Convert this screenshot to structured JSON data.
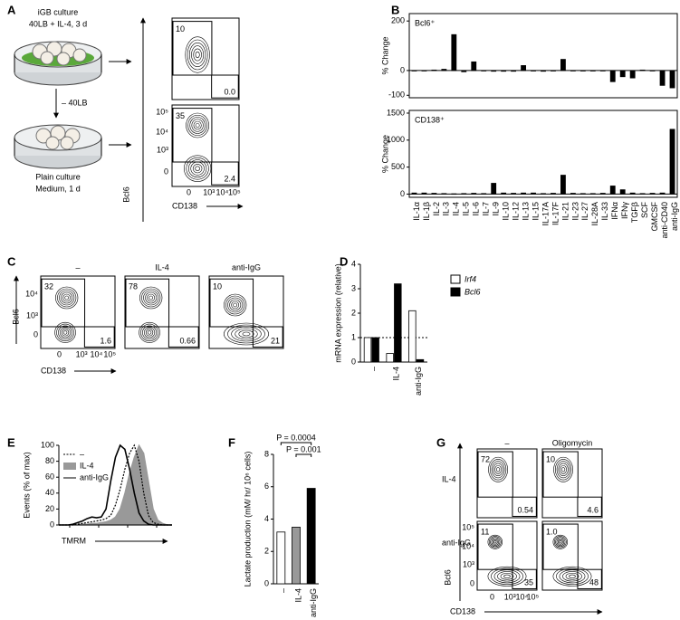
{
  "panel_labels": [
    "A",
    "B",
    "C",
    "D",
    "E",
    "F",
    "G"
  ],
  "panel_a": {
    "culture1": [
      "iGB culture",
      "40LB + IL-4, 3 d"
    ],
    "step": "– 40LB",
    "culture2": [
      "Plain culture",
      "Medium, 1 d"
    ],
    "y_label": "Bcl6",
    "x_label": "CD138",
    "yticks": [
      "10⁵",
      "10⁴",
      "10³",
      "0"
    ],
    "xticks": [
      "0",
      "10³",
      "10⁴",
      "10⁵"
    ],
    "gates": [
      [
        "10",
        "0.0"
      ],
      [
        "35",
        "2.4"
      ]
    ]
  },
  "panel_c": {
    "headers": [
      "–",
      "IL-4",
      "anti-IgG"
    ],
    "gates": [
      [
        "32",
        "1.6"
      ],
      [
        "78",
        "0.66"
      ],
      [
        "10",
        "21"
      ]
    ],
    "y_label": "Bcl6",
    "x_label": "CD138",
    "yticks": [
      "10⁴",
      "10³",
      "0"
    ],
    "xticks": [
      "0",
      "10³",
      "10⁴",
      "10⁵"
    ]
  },
  "panel_g": {
    "headers": [
      "–",
      "Oligomycin"
    ],
    "rows": [
      "IL-4",
      "anti-IgG"
    ],
    "gates": [
      [
        "72",
        "0.54"
      ],
      [
        "10",
        "4.6"
      ],
      [
        "11",
        "35"
      ],
      [
        "1.0",
        "48"
      ]
    ],
    "y_label": "Bcl6",
    "x_label": "CD138",
    "yticks": [
      "10⁵",
      "10⁴",
      "10³",
      "0"
    ],
    "xticks": [
      "0",
      "10³",
      "10⁴",
      "10⁵"
    ]
  },
  "chart_data": [
    {
      "type": "bar",
      "subtitle": "Bcl6⁺",
      "y_label": "% Change",
      "color": "#000000",
      "values": [
        0,
        0,
        2,
        5,
        145,
        -5,
        35,
        0,
        -3,
        -3,
        -3,
        20,
        -2,
        -3,
        -2,
        45,
        0,
        -2,
        -2,
        0,
        -45,
        -25,
        -30,
        2,
        0,
        -60,
        -70
      ],
      "ylim": [
        -110,
        230
      ],
      "yticks": [
        -100,
        0,
        200
      ]
    },
    {
      "type": "bar",
      "subtitle": "CD138⁺",
      "y_label": "% Change",
      "color": "#000000",
      "categories": [
        "IL-1α",
        "IL-1β",
        "IL-2",
        "IL-3",
        "IL-4",
        "IL-5",
        "IL-6",
        "IL-7",
        "IL-9",
        "IL-10",
        "IL-12",
        "IL-13",
        "IL-15",
        "IL-17A",
        "IL-17F",
        "IL-21",
        "IL-23",
        "IL-27",
        "IL-28A",
        "IL-33",
        "IFNα",
        "IFNγ",
        "TGFβ",
        "SCF",
        "GMCSF",
        "anti-CD40",
        "anti-IgG"
      ],
      "values": [
        20,
        20,
        15,
        10,
        5,
        10,
        15,
        10,
        200,
        20,
        15,
        20,
        20,
        10,
        15,
        350,
        15,
        10,
        10,
        15,
        150,
        80,
        20,
        10,
        15,
        20,
        1200
      ],
      "ylim": [
        -60,
        1550
      ],
      "yticks": [
        0,
        500,
        1000,
        1500
      ]
    },
    {
      "type": "grouped-bar",
      "y_label": "mRNA expression (relative)",
      "categories": [
        "–",
        "IL-4",
        "anti-IgG"
      ],
      "series": [
        {
          "name": "Irf4",
          "color": "#ffffff",
          "values": [
            1,
            0.35,
            2.1
          ]
        },
        {
          "name": "Bcl6",
          "color": "#000000",
          "values": [
            1,
            3.2,
            0.1
          ]
        }
      ],
      "ylim": [
        0,
        4
      ],
      "yticks": [
        0,
        1,
        2,
        3,
        4
      ],
      "ref_line": 1
    },
    {
      "type": "line",
      "y_label": "Events (% of max)",
      "x_label": "TMRM",
      "x": [
        0,
        1,
        2,
        3,
        4,
        5,
        6,
        7,
        8,
        9,
        10,
        11,
        12,
        13,
        14,
        15,
        16,
        17,
        18,
        19,
        20,
        21,
        22,
        23,
        24
      ],
      "xlim": [
        0,
        24
      ],
      "series": [
        {
          "name": "–",
          "color": "#000000",
          "style": "dotted",
          "values": [
            0,
            0,
            0,
            0,
            1,
            2,
            3,
            4,
            5,
            6,
            8,
            12,
            25,
            45,
            70,
            90,
            100,
            80,
            40,
            12,
            3,
            1,
            0,
            0,
            0
          ]
        },
        {
          "name": "IL-4",
          "color": "#999999",
          "style": "filled",
          "values": [
            0,
            0,
            0,
            0,
            0,
            1,
            1,
            2,
            2,
            3,
            4,
            6,
            10,
            20,
            40,
            65,
            85,
            100,
            90,
            55,
            20,
            6,
            2,
            0,
            0
          ]
        },
        {
          "name": "anti-IgG",
          "color": "#000000",
          "style": "solid",
          "values": [
            0,
            0,
            0,
            1,
            3,
            5,
            8,
            10,
            9,
            10,
            20,
            55,
            85,
            100,
            95,
            70,
            40,
            15,
            5,
            1,
            0,
            0,
            0,
            0,
            0
          ]
        }
      ],
      "ylim": [
        0,
        100
      ],
      "yticks": [
        0,
        20,
        40,
        60,
        80,
        100
      ]
    },
    {
      "type": "bar",
      "y_label": "Lactate production (mM/ hr/ 10⁶ cells)",
      "categories": [
        "–",
        "IL-4",
        "anti-IgG"
      ],
      "values": [
        3.2,
        3.5,
        5.9
      ],
      "colors": [
        "#ffffff",
        "#999999",
        "#000000"
      ],
      "ylim": [
        0,
        8
      ],
      "yticks": [
        0,
        2,
        4,
        6,
        8
      ],
      "annotations": [
        "P = 0.0004",
        "P = 0.001"
      ]
    }
  ]
}
